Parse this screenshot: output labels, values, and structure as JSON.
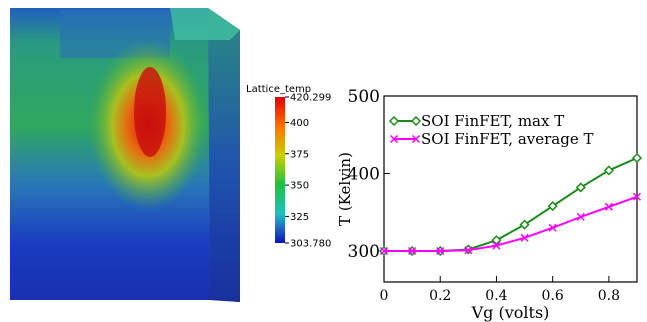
{
  "figure": {
    "colorbar": {
      "title": "Lattice_temp",
      "clim": [
        303.78,
        420.299
      ],
      "ticks": [
        420.299,
        400,
        375,
        350,
        325,
        {
          "value": 303.78,
          "label": "303.780"
        }
      ]
    }
  },
  "chart_data": {
    "type": "line",
    "x_label": "Vg (volts)",
    "y_label": "T (Kelvin)",
    "x": [
      0,
      0.1,
      0.2,
      0.3,
      0.4,
      0.5,
      0.6,
      0.7,
      0.8,
      0.9
    ],
    "series": [
      {
        "name": "SOI FinFET, max T",
        "color": "#1a8a1a",
        "marker": "diamond",
        "values": [
          300,
          300,
          300,
          302,
          314,
          334,
          358,
          382,
          404,
          420
        ]
      },
      {
        "name": "SOI FinFET, average T",
        "color": "#ff00ff",
        "marker": "x",
        "values": [
          300,
          300,
          300,
          301,
          307,
          317,
          330,
          344,
          357,
          370
        ]
      }
    ],
    "xlim": [
      0,
      0.9
    ],
    "xticks": [
      0,
      0.2,
      0.4,
      0.6,
      0.8
    ],
    "ylim": [
      260,
      500
    ],
    "yticks": [
      300,
      400,
      500
    ],
    "legend": "upper-left"
  }
}
